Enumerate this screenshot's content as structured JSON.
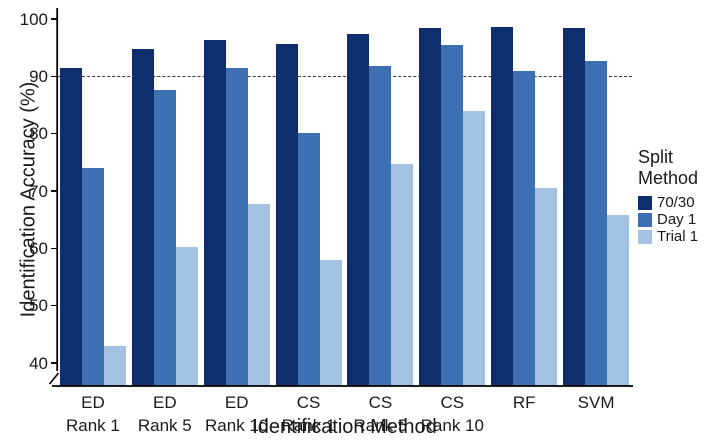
{
  "chart_data": {
    "type": "bar",
    "title": "",
    "xlabel": "Identification Method",
    "ylabel": "Identification Accuracy (%)",
    "ylim": [
      40,
      100
    ],
    "yticks": [
      40,
      50,
      60,
      70,
      80,
      90,
      100
    ],
    "axis_break_below": 40,
    "grid": false,
    "reference_line": {
      "y": 90,
      "style": "dashed",
      "color": "#3a3a3a"
    },
    "categories": [
      "ED\nRank 1",
      "ED\nRank 5",
      "ED\nRank 10",
      "CS\nRank 1",
      "CS\nRank 5",
      "CS\nRank 10",
      "RF",
      "SVM"
    ],
    "series": [
      {
        "name": "70/30",
        "color": "#0e2e6e",
        "values": [
          91.5,
          94.7,
          96.3,
          95.6,
          97.4,
          98.4,
          98.6,
          98.4
        ]
      },
      {
        "name": "Day 1",
        "color": "#3d6fb3",
        "values": [
          74.0,
          87.7,
          91.5,
          80.2,
          91.8,
          95.4,
          91.0,
          92.6
        ]
      },
      {
        "name": "Trial 1",
        "color": "#a3c1e0",
        "values": [
          43.0,
          60.3,
          67.7,
          58.0,
          74.7,
          84.0,
          70.6,
          65.8
        ]
      }
    ],
    "legend": {
      "position": "right"
    },
    "legend_title": "Split\nMethod"
  }
}
